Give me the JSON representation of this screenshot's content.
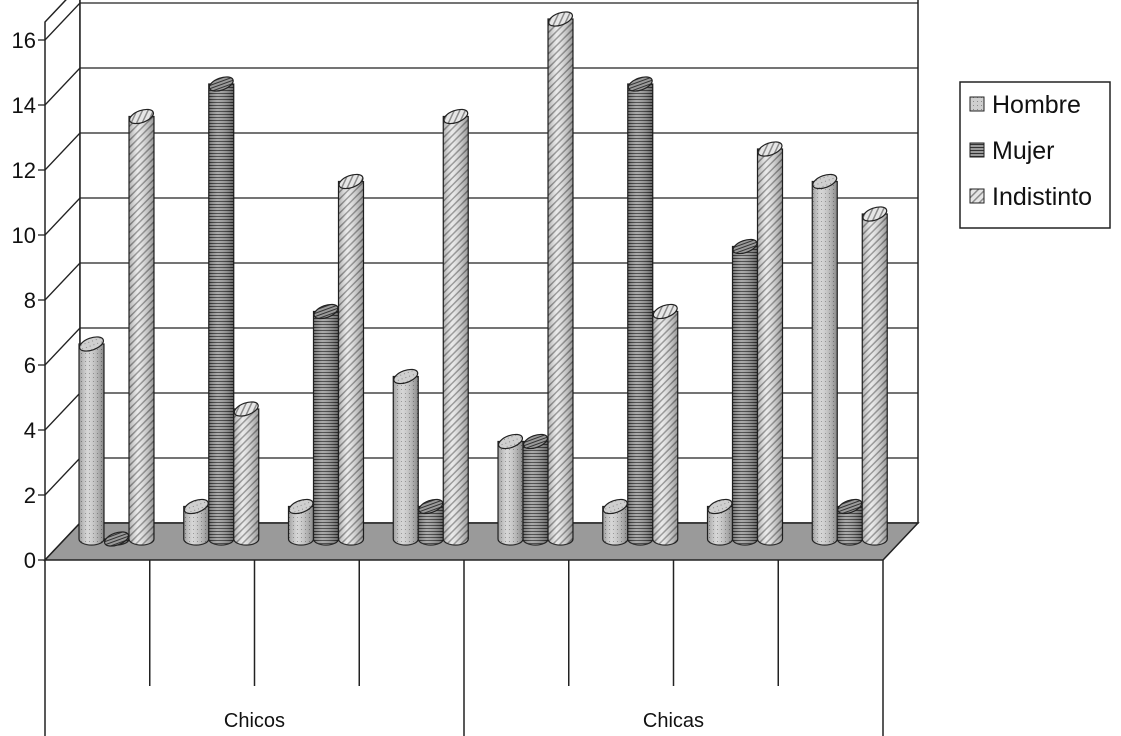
{
  "chart_data": {
    "type": "bar",
    "style": "3d-cylinder",
    "groups": [
      {
        "label": "Chicos",
        "categories": 4
      },
      {
        "label": "Chicas",
        "categories": 4
      }
    ],
    "series": [
      {
        "name": "Hombre",
        "values": [
          6,
          1,
          1,
          5,
          3,
          1,
          1,
          11
        ],
        "color": "#c8c8c8",
        "pattern": "dots"
      },
      {
        "name": "Mujer",
        "values": [
          0,
          14,
          7,
          1,
          3,
          14,
          9,
          1
        ],
        "color": "#8a8a8a",
        "pattern": "horizontal-lines"
      },
      {
        "name": "Indistinto",
        "values": [
          13,
          4,
          11,
          13,
          16,
          7,
          12,
          10
        ],
        "color": "#dcdcdc",
        "pattern": "diagonal-lines"
      }
    ],
    "ylim": [
      0,
      16
    ],
    "yticks": [
      "0",
      "2",
      "4",
      "6",
      "8",
      "10",
      "12",
      "14",
      "16"
    ],
    "grid": true,
    "legend_position": "right"
  }
}
